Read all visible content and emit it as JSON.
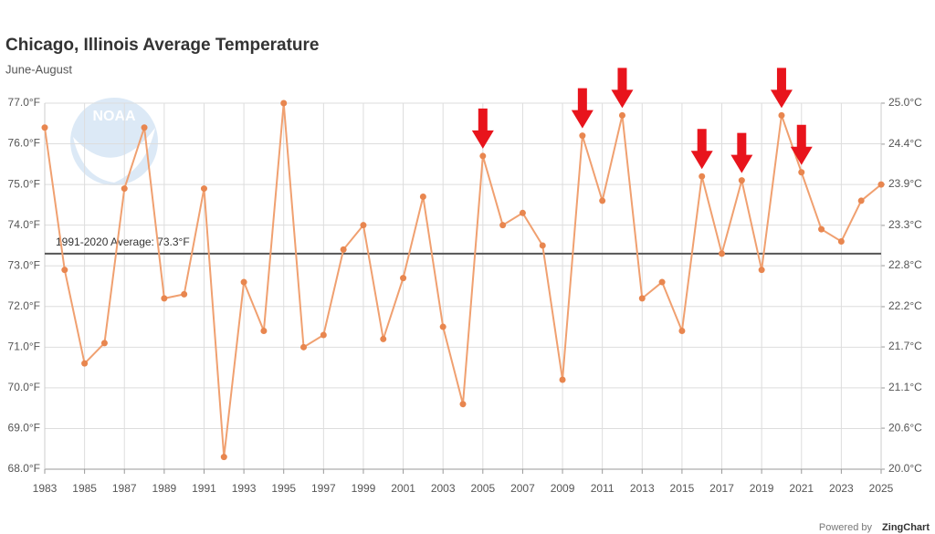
{
  "chart_data": {
    "type": "line",
    "title": "Chicago, Illinois Average Temperature",
    "subtitle": "June-August",
    "logo_text": "NOAA",
    "credit_prefix": "Powered by",
    "credit_brand": "ZingChart",
    "x": [
      1983,
      1984,
      1985,
      1986,
      1987,
      1988,
      1989,
      1990,
      1991,
      1992,
      1993,
      1994,
      1995,
      1996,
      1997,
      1998,
      1999,
      2000,
      2001,
      2002,
      2003,
      2004,
      2005,
      2006,
      2007,
      2008,
      2009,
      2010,
      2011,
      2012,
      2013,
      2014,
      2015,
      2016,
      2017,
      2018,
      2019,
      2020,
      2021,
      2022,
      2023,
      2024,
      2025
    ],
    "series": [
      {
        "color": "#f0a070",
        "values": [
          76.4,
          72.9,
          70.6,
          71.1,
          74.9,
          76.4,
          72.2,
          72.3,
          74.9,
          68.3,
          72.6,
          71.4,
          77.0,
          71.0,
          71.3,
          73.4,
          74.0,
          71.2,
          72.7,
          74.7,
          71.5,
          69.6,
          75.7,
          74.0,
          74.3,
          73.5,
          70.2,
          76.2,
          74.6,
          76.7,
          72.2,
          72.6,
          71.4,
          75.2,
          73.3,
          75.1,
          72.9,
          76.7,
          75.3,
          73.9,
          73.6,
          74.6,
          75.0
        ]
      }
    ],
    "xlim": [
      1983,
      2025
    ],
    "xticks": [
      1983,
      1985,
      1987,
      1989,
      1991,
      1993,
      1995,
      1997,
      1999,
      2001,
      2003,
      2005,
      2007,
      2009,
      2011,
      2013,
      2015,
      2017,
      2019,
      2021,
      2023,
      2025
    ],
    "ylim": [
      68,
      77
    ],
    "yticks": [
      {
        "value": 68,
        "label": "68.0°F"
      },
      {
        "value": 69,
        "label": "69.0°F"
      },
      {
        "value": 70,
        "label": "70.0°F"
      },
      {
        "value": 71,
        "label": "71.0°F"
      },
      {
        "value": 72,
        "label": "72.0°F"
      },
      {
        "value": 73,
        "label": "73.0°F"
      },
      {
        "value": 74,
        "label": "74.0°F"
      },
      {
        "value": 75,
        "label": "75.0°F"
      },
      {
        "value": 76,
        "label": "76.0°F"
      },
      {
        "value": 77,
        "label": "77.0°F"
      }
    ],
    "y2lim": [
      20,
      25
    ],
    "y2ticks": [
      {
        "value": 20,
        "label": "20.0°C"
      },
      {
        "value": 20.56,
        "label": "20.6°C"
      },
      {
        "value": 21.11,
        "label": "21.1°C"
      },
      {
        "value": 21.67,
        "label": "21.7°C"
      },
      {
        "value": 22.22,
        "label": "22.2°C"
      },
      {
        "value": 22.78,
        "label": "22.8°C"
      },
      {
        "value": 23.33,
        "label": "23.3°C"
      },
      {
        "value": 23.89,
        "label": "23.9°C"
      },
      {
        "value": 24.44,
        "label": "24.4°C"
      },
      {
        "value": 25,
        "label": "25.0°C"
      }
    ],
    "grid": true,
    "reference_line": {
      "value": 73.3,
      "label": "1991-2020 Average: 73.3°F",
      "color": "#555555"
    },
    "arrows_at": [
      2005,
      2010,
      2012,
      2016,
      2018,
      2020,
      2021
    ],
    "arrow_color": "#e8141c"
  }
}
